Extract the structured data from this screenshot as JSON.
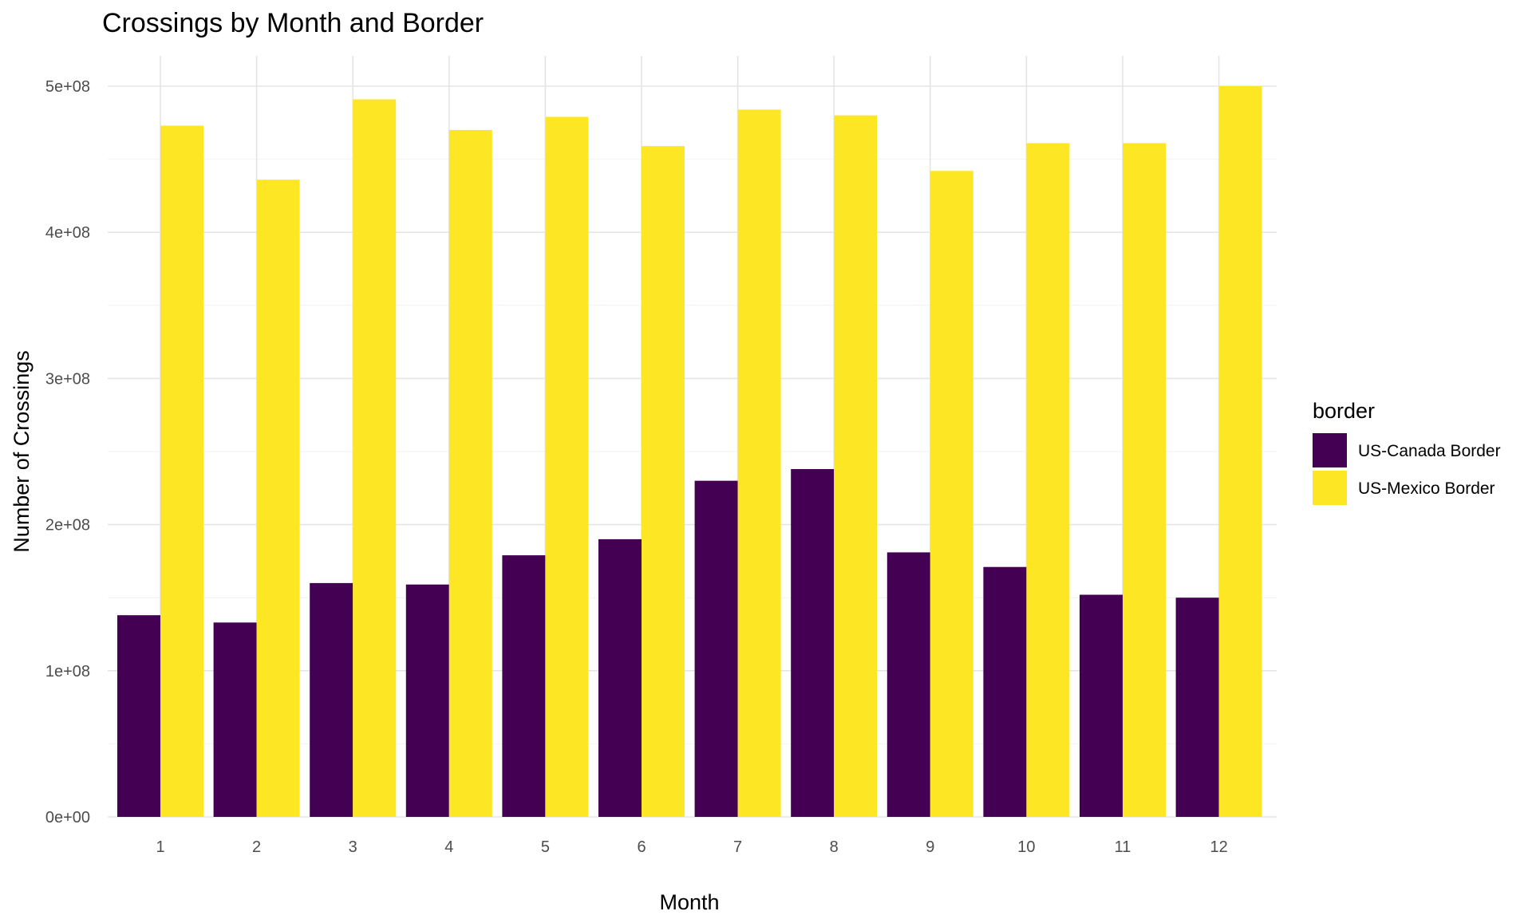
{
  "chart_data": {
    "type": "bar",
    "title": "Crossings by Month and Border",
    "xlabel": "Month",
    "ylabel": "Number of Crossings",
    "categories": [
      "1",
      "2",
      "3",
      "4",
      "5",
      "6",
      "7",
      "8",
      "9",
      "10",
      "11",
      "12"
    ],
    "series": [
      {
        "name": "US-Canada Border",
        "color": "#440154",
        "values": [
          138000000,
          133000000,
          160000000,
          159000000,
          179000000,
          190000000,
          230000000,
          238000000,
          181000000,
          171000000,
          152000000,
          150000000
        ]
      },
      {
        "name": "US-Mexico Border",
        "color": "#FDE725",
        "values": [
          473000000,
          436000000,
          491000000,
          470000000,
          479000000,
          459000000,
          484000000,
          480000000,
          442000000,
          461000000,
          461000000,
          500000000
        ]
      }
    ],
    "ylim": [
      0,
      500000000
    ],
    "yticks": [
      {
        "value": 0,
        "label": "0e+00"
      },
      {
        "value": 100000000,
        "label": "1e+08"
      },
      {
        "value": 200000000,
        "label": "2e+08"
      },
      {
        "value": 300000000,
        "label": "3e+08"
      },
      {
        "value": 400000000,
        "label": "4e+08"
      },
      {
        "value": 500000000,
        "label": "5e+08"
      }
    ],
    "grid": true,
    "legend": {
      "title": "border",
      "position": "right"
    }
  }
}
